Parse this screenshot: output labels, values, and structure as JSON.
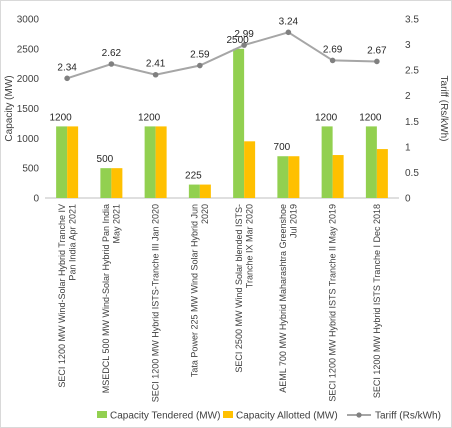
{
  "chart_data": {
    "type": "bar",
    "categories": [
      [
        "SECI 1200 MW Wind-Solar Hybrid Tranche IV",
        "Pan India Apr 2021"
      ],
      [
        "MSEDCL 500 MW Wind-Solar Hybrid Pan India",
        "May 2021"
      ],
      [
        "SECI 1200 MW Hybrid ISTS-Tranche III Jan 2020"
      ],
      [
        "Tata Power 225 MW Wind Solar Hybrid Jun",
        "2020"
      ],
      [
        "SECI 2500 MW Wind Solar blended ISTS-",
        "Tranche IX Mar 2020"
      ],
      [
        "AEML 700 MW Hybrid Maharashtra Greenshoe",
        "Jul 2019"
      ],
      [
        "SECI 1200 MW Hybrid ISTS Tranche II May 2019"
      ],
      [
        "SECI 1200 MW Hybrid ISTS Tranche I Dec 2018"
      ]
    ],
    "series": [
      {
        "name": "Capacity Tendered (MW)",
        "type": "bar",
        "axis": "left",
        "color": "#92d050",
        "values": [
          1200,
          500,
          1200,
          225,
          2500,
          700,
          1200,
          1200
        ],
        "labels": [
          "1200",
          "500",
          "1200",
          "225",
          "2500",
          "700",
          "1200",
          "1200"
        ]
      },
      {
        "name": "Capacity Allotted (MW)",
        "type": "bar",
        "axis": "left",
        "color": "#ffc000",
        "values": [
          1200,
          500,
          1200,
          225,
          950,
          700,
          720,
          820
        ]
      },
      {
        "name": "Tariff (Rs/kWh)",
        "type": "line",
        "axis": "right",
        "color": "#a6a6a6",
        "values": [
          2.34,
          2.62,
          2.41,
          2.59,
          2.99,
          3.24,
          2.69,
          2.67
        ],
        "labels": [
          "2.34",
          "2.62",
          "2.41",
          "2.59",
          "2.99",
          "3.24",
          "2.69",
          "2.67"
        ]
      }
    ],
    "ylabel": "Capacity (MW)",
    "y2label": "Tariff (Rs/kWh)",
    "ylim": [
      0,
      3000
    ],
    "y2lim": [
      0,
      3.5
    ],
    "yticks": [
      "0",
      "500",
      "1000",
      "1500",
      "2000",
      "2500",
      "3000"
    ],
    "y2ticks": [
      "0",
      "0.5",
      "1",
      "1.5",
      "2",
      "2.5",
      "3",
      "3.5"
    ],
    "grid": false,
    "legend_position": "bottom"
  }
}
